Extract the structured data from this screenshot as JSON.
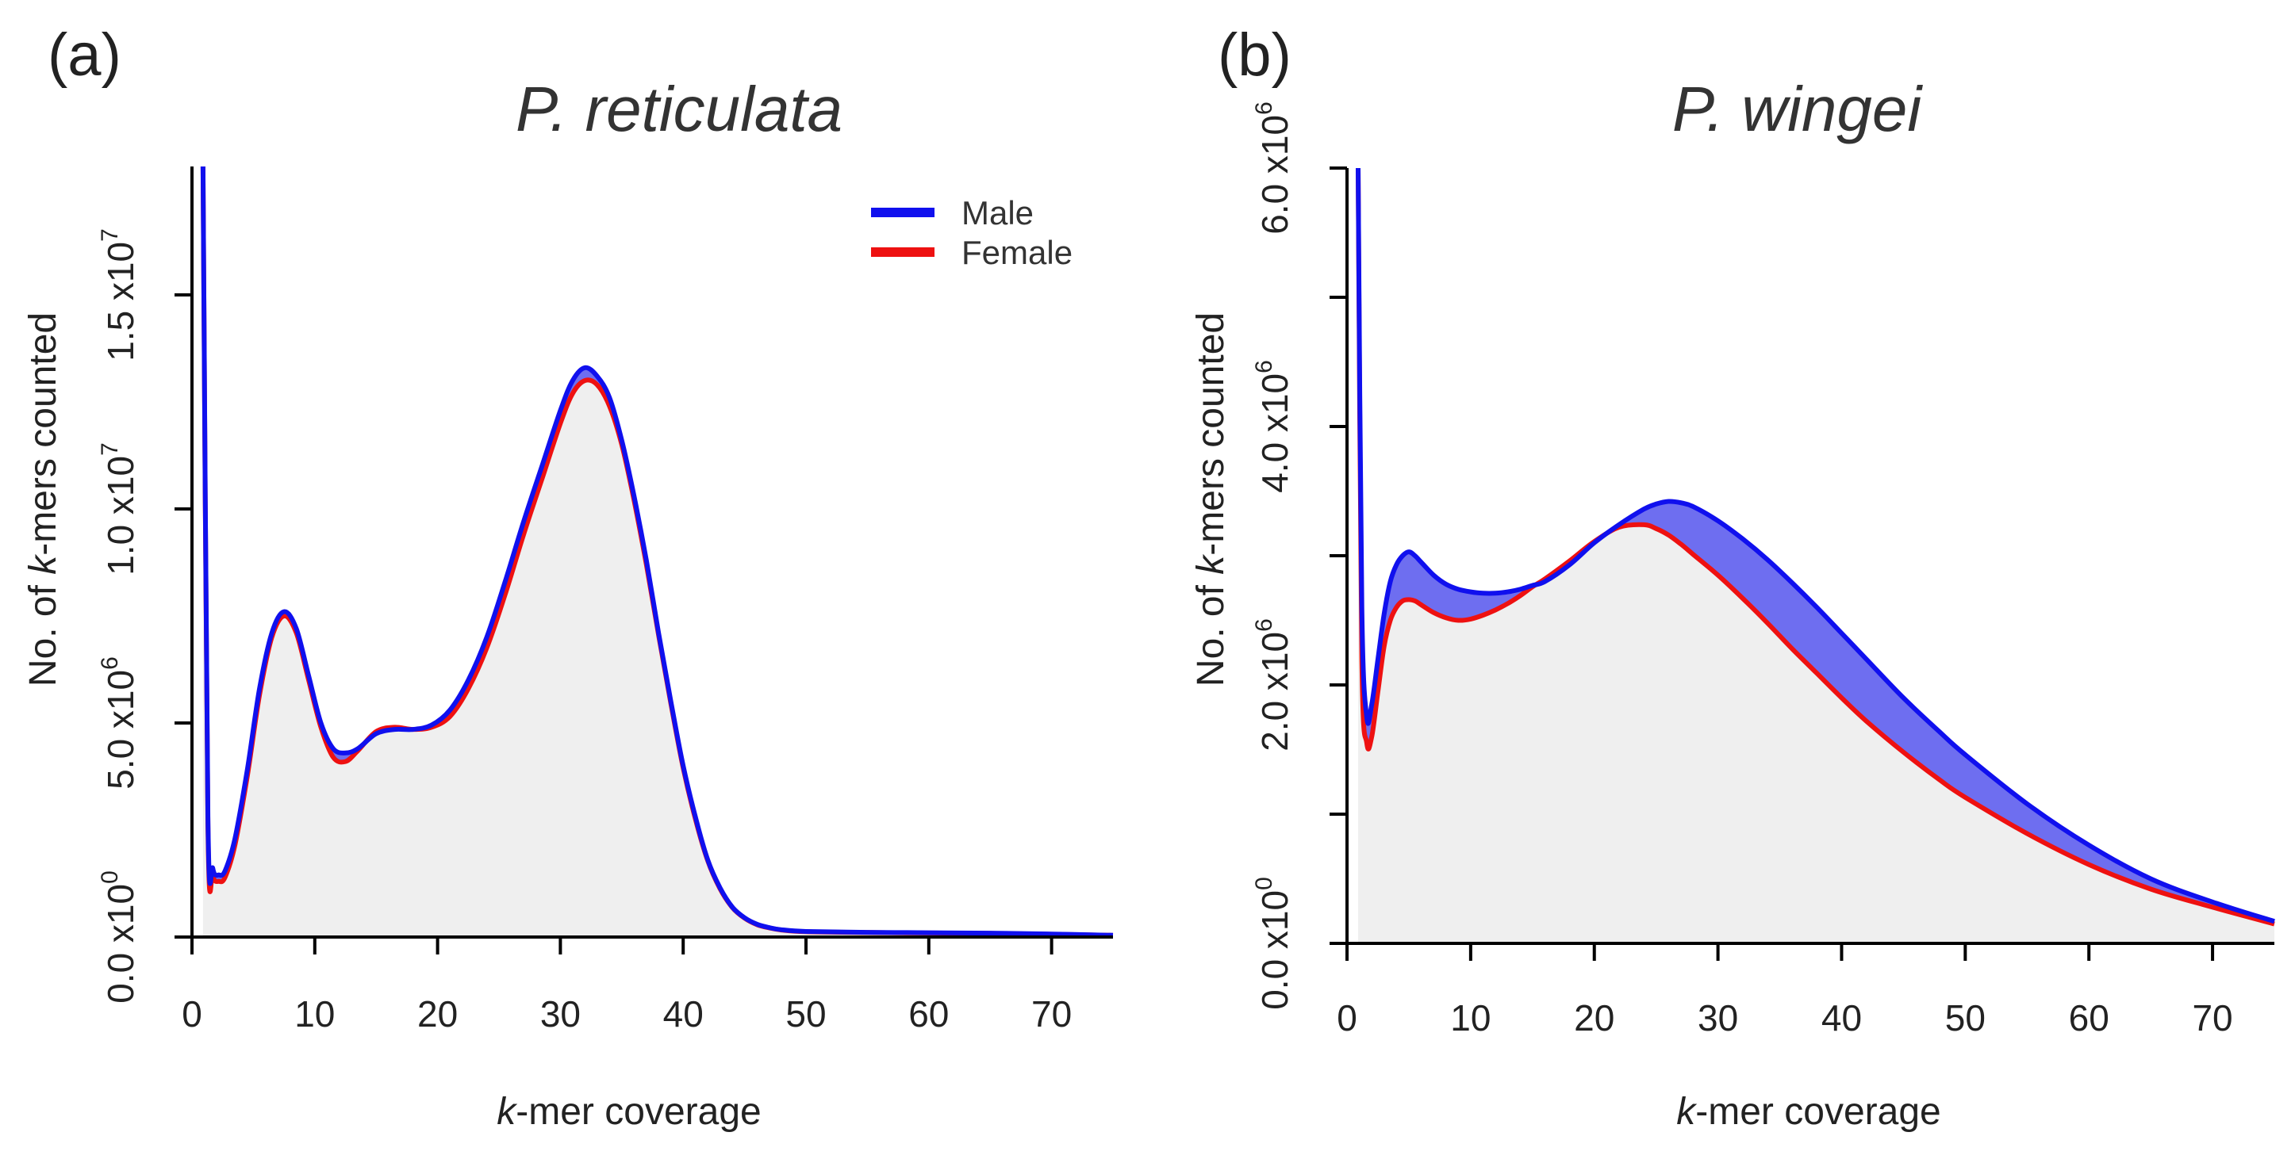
{
  "figure_labels": {
    "a": "(a)",
    "b": "(b)"
  },
  "chart_data": [
    {
      "id": "a",
      "type": "area",
      "title": "P. reticulata",
      "xlabel": {
        "prefix": "k",
        "rest": "-mer coverage"
      },
      "ylabel": {
        "before": "No. of ",
        "italic": "k",
        "after": "-mers counted"
      },
      "xlim": [
        0,
        75
      ],
      "ylim": [
        0,
        18000000
      ],
      "xticks": [
        "0",
        "10",
        "20",
        "30",
        "40",
        "50",
        "60",
        "70"
      ],
      "xtick_values": [
        0,
        10,
        20,
        30,
        40,
        50,
        60,
        70
      ],
      "yticks": [
        {
          "value": 0,
          "mantissa": "0.0",
          "times": "x10",
          "exp": "0"
        },
        {
          "value": 5000000,
          "mantissa": "5.0",
          "times": "x10",
          "exp": "6"
        },
        {
          "value": 10000000,
          "mantissa": "1.0",
          "times": "x10",
          "exp": "7"
        },
        {
          "value": 15000000,
          "mantissa": "1.5",
          "times": "x10",
          "exp": "7"
        }
      ],
      "legend": {
        "position": "top-right",
        "entries": [
          "Male",
          "Female"
        ]
      },
      "colors": {
        "male": "#1010ee",
        "female": "#ee1111",
        "fill": "#efefef",
        "diff": "#6e6ef0"
      },
      "series": [
        {
          "name": "Male",
          "x": [
            0.9,
            1.3,
            1.7,
            2.2,
            2.7,
            3.5,
            4.5,
            5.5,
            6.5,
            7.5,
            8.5,
            9.5,
            10.5,
            11.5,
            12.5,
            13.5,
            15,
            16.5,
            18,
            19.5,
            21,
            22.5,
            24,
            25.5,
            27,
            28.5,
            30,
            31,
            32,
            33,
            34,
            35,
            36,
            37,
            38,
            39,
            40,
            41,
            42,
            43,
            44,
            45,
            46,
            47,
            48,
            50,
            55,
            60,
            65,
            70,
            75
          ],
          "y": [
            18000000,
            2800000,
            1600000,
            1450000,
            1550000,
            2300000,
            3900000,
            5800000,
            7100000,
            7600000,
            7200000,
            6100000,
            5000000,
            4400000,
            4300000,
            4400000,
            4750000,
            4850000,
            4850000,
            4950000,
            5300000,
            6000000,
            7000000,
            8300000,
            9700000,
            11000000,
            12300000,
            13000000,
            13300000,
            13100000,
            12600000,
            11600000,
            10300000,
            8800000,
            7100000,
            5500000,
            4000000,
            2800000,
            1800000,
            1150000,
            700000,
            450000,
            300000,
            220000,
            170000,
            130000,
            110000,
            100000,
            90000,
            70000,
            40000
          ]
        },
        {
          "name": "Female",
          "x": [
            0.9,
            1.3,
            1.7,
            2.2,
            2.7,
            3.5,
            4.5,
            5.5,
            6.5,
            7.5,
            8.5,
            9.5,
            10.5,
            11.5,
            12.5,
            13.5,
            15,
            16.5,
            18,
            19.5,
            21,
            22.5,
            24,
            25.5,
            27,
            28.5,
            30,
            31,
            32,
            33,
            34,
            35,
            36,
            37,
            38,
            39,
            40,
            41,
            42,
            43,
            44,
            45,
            46,
            47,
            48,
            50,
            55,
            60,
            65,
            70,
            75
          ],
          "y": [
            18000000,
            2600000,
            1450000,
            1300000,
            1400000,
            2150000,
            3750000,
            5650000,
            7000000,
            7500000,
            7100000,
            6000000,
            4900000,
            4200000,
            4100000,
            4350000,
            4800000,
            4900000,
            4850000,
            4900000,
            5150000,
            5800000,
            6750000,
            8000000,
            9400000,
            10700000,
            12000000,
            12700000,
            13000000,
            12900000,
            12400000,
            11500000,
            10200000,
            8700000,
            7050000,
            5450000,
            3950000,
            2750000,
            1780000,
            1130000,
            690000,
            440000,
            290000,
            215000,
            165000,
            125000,
            105000,
            95000,
            85000,
            65000,
            38000
          ]
        }
      ]
    },
    {
      "id": "b",
      "type": "area",
      "title": "P. wingei",
      "xlabel": {
        "prefix": "k",
        "rest": "-mer coverage"
      },
      "ylabel": {
        "before": "No. of ",
        "italic": "k",
        "after": "-mers counted"
      },
      "xlim": [
        0,
        75
      ],
      "ylim": [
        0,
        6000000
      ],
      "xticks": [
        "0",
        "10",
        "20",
        "30",
        "40",
        "50",
        "60",
        "70"
      ],
      "xtick_values": [
        0,
        10,
        20,
        30,
        40,
        50,
        60,
        70
      ],
      "minor_yticks": [
        1000000,
        3000000,
        5000000
      ],
      "yticks": [
        {
          "value": 0,
          "mantissa": "0.0",
          "times": "x10",
          "exp": "0"
        },
        {
          "value": 2000000,
          "mantissa": "2.0",
          "times": "x10",
          "exp": "6"
        },
        {
          "value": 4000000,
          "mantissa": "4.0",
          "times": "x10",
          "exp": "6"
        },
        {
          "value": 6000000,
          "mantissa": "6.0",
          "times": "x10",
          "exp": "6"
        }
      ],
      "colors": {
        "male": "#1010ee",
        "female": "#ee1111",
        "fill": "#efefef",
        "diff": "#6e6ef0"
      },
      "series": [
        {
          "name": "Male",
          "x": [
            0.9,
            1.2,
            1.6,
            2,
            2.5,
            3,
            3.5,
            4,
            4.5,
            5,
            5.5,
            6,
            7,
            8,
            9,
            10,
            11,
            12,
            13,
            14,
            15,
            16,
            18,
            20,
            22,
            24,
            25,
            26,
            27,
            28,
            30,
            32,
            34,
            36,
            38,
            40,
            42,
            45,
            48,
            50,
            55,
            60,
            65,
            70,
            75
          ],
          "y": [
            6000000,
            2600000,
            1750000,
            1850000,
            2200000,
            2550000,
            2800000,
            2930000,
            3000000,
            3030000,
            3000000,
            2950000,
            2850000,
            2780000,
            2740000,
            2720000,
            2710000,
            2710000,
            2720000,
            2740000,
            2770000,
            2800000,
            2930000,
            3100000,
            3240000,
            3360000,
            3400000,
            3420000,
            3410000,
            3380000,
            3270000,
            3130000,
            2970000,
            2790000,
            2600000,
            2400000,
            2200000,
            1900000,
            1630000,
            1460000,
            1080000,
            760000,
            500000,
            320000,
            170000
          ]
        },
        {
          "name": "Female",
          "x": [
            0.9,
            1.2,
            1.6,
            2,
            2.5,
            3,
            3.5,
            4,
            4.5,
            5,
            5.5,
            6,
            7,
            8,
            9,
            10,
            11,
            12,
            13,
            14,
            15,
            16,
            18,
            20,
            22,
            24,
            25,
            26,
            27,
            28,
            30,
            32,
            34,
            36,
            38,
            40,
            42,
            45,
            48,
            50,
            55,
            60,
            65,
            70,
            75
          ],
          "y": [
            6000000,
            2200000,
            1550000,
            1600000,
            1950000,
            2300000,
            2500000,
            2600000,
            2650000,
            2660000,
            2650000,
            2620000,
            2560000,
            2520000,
            2500000,
            2510000,
            2540000,
            2580000,
            2630000,
            2690000,
            2760000,
            2820000,
            2960000,
            3110000,
            3220000,
            3240000,
            3210000,
            3160000,
            3090000,
            3010000,
            2850000,
            2670000,
            2480000,
            2280000,
            2090000,
            1900000,
            1720000,
            1480000,
            1260000,
            1130000,
            850000,
            610000,
            420000,
            280000,
            150000
          ]
        }
      ]
    }
  ]
}
